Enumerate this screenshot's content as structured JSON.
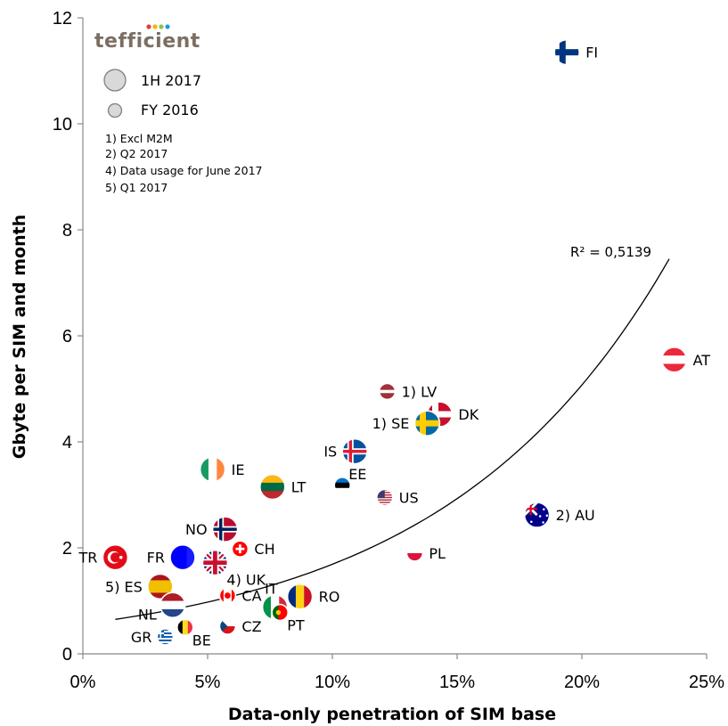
{
  "logo": {
    "text": "tefficient"
  },
  "legend": {
    "items": [
      {
        "label": "1H 2017",
        "size": "large"
      },
      {
        "label": "FY 2016",
        "size": "small"
      }
    ]
  },
  "notes": [
    "1) Excl M2M",
    "2) Q2 2017",
    "4) Data usage for June 2017",
    "5) Q1 2017"
  ],
  "chart_data": {
    "type": "scatter",
    "xlabel": "Data-only penetration of SIM base",
    "ylabel": "Gbyte per SIM and month",
    "xlim": [
      0,
      0.25
    ],
    "ylim": [
      0,
      12
    ],
    "x_ticks": [
      {
        "value": 0,
        "label": "0%"
      },
      {
        "value": 0.05,
        "label": "5%"
      },
      {
        "value": 0.1,
        "label": "10%"
      },
      {
        "value": 0.15,
        "label": "15%"
      },
      {
        "value": 0.2,
        "label": "20%"
      },
      {
        "value": 0.25,
        "label": "25%"
      }
    ],
    "y_ticks": [
      {
        "value": 0,
        "label": "0"
      },
      {
        "value": 2,
        "label": "2"
      },
      {
        "value": 4,
        "label": "4"
      },
      {
        "value": 6,
        "label": "6"
      },
      {
        "value": 8,
        "label": "8"
      },
      {
        "value": 10,
        "label": "10"
      },
      {
        "value": 12,
        "label": "12"
      }
    ],
    "trendline": {
      "type": "exponential",
      "r2_label": "R² = 0,5139",
      "x_start": 0.013,
      "x_end": 0.235,
      "y_start": 0.65,
      "y_end": 7.45
    },
    "points": [
      {
        "country": "FI",
        "label": "FI",
        "x": 0.194,
        "y": 11.35,
        "size": "large",
        "flag": "FI",
        "label_side": "right"
      },
      {
        "country": "AT",
        "label": "AT",
        "x": 0.237,
        "y": 5.55,
        "size": "large",
        "flag": "AT",
        "label_side": "right"
      },
      {
        "country": "LV",
        "label": "1) LV",
        "x": 0.122,
        "y": 4.95,
        "size": "small",
        "flag": "LV",
        "label_side": "right"
      },
      {
        "country": "DK",
        "label": "DK",
        "x": 0.143,
        "y": 4.52,
        "size": "large",
        "flag": "DK",
        "label_side": "right"
      },
      {
        "country": "SE",
        "label": "1) SE",
        "x": 0.138,
        "y": 4.35,
        "size": "large",
        "flag": "SE",
        "label_side": "left"
      },
      {
        "country": "IS",
        "label": "IS",
        "x": 0.109,
        "y": 3.82,
        "size": "large",
        "flag": "IS",
        "label_side": "left"
      },
      {
        "country": "EE",
        "label": "EE",
        "x": 0.104,
        "y": 3.18,
        "size": "small",
        "flag": "EE",
        "label_side": "upright"
      },
      {
        "country": "IE",
        "label": "IE",
        "x": 0.052,
        "y": 3.48,
        "size": "large",
        "flag": "IE",
        "label_side": "right"
      },
      {
        "country": "LT",
        "label": "LT",
        "x": 0.076,
        "y": 3.15,
        "size": "large",
        "flag": "LT",
        "label_side": "right"
      },
      {
        "country": "US",
        "label": "US",
        "x": 0.121,
        "y": 2.95,
        "size": "small",
        "flag": "US",
        "label_side": "right"
      },
      {
        "country": "AU",
        "label": "2) AU",
        "x": 0.182,
        "y": 2.62,
        "size": "large",
        "flag": "AU",
        "label_side": "right"
      },
      {
        "country": "NO",
        "label": "NO",
        "x": 0.057,
        "y": 2.35,
        "size": "large",
        "flag": "NO",
        "label_side": "left"
      },
      {
        "country": "CH",
        "label": "CH",
        "x": 0.063,
        "y": 1.98,
        "size": "small",
        "flag": "CH",
        "label_side": "right"
      },
      {
        "country": "PL",
        "label": "PL",
        "x": 0.133,
        "y": 1.9,
        "size": "small",
        "flag": "PL",
        "label_side": "right"
      },
      {
        "country": "TR",
        "label": "TR",
        "x": 0.013,
        "y": 1.82,
        "size": "large",
        "flag": "TR",
        "label_side": "left"
      },
      {
        "country": "FR",
        "label": "FR",
        "x": 0.04,
        "y": 1.82,
        "size": "large",
        "flag": "FR",
        "label_side": "left"
      },
      {
        "country": "UK",
        "label": "4) UK",
        "x": 0.053,
        "y": 1.72,
        "size": "large",
        "flag": "UK",
        "label_side": "downright"
      },
      {
        "country": "ES",
        "label": "5) ES",
        "x": 0.031,
        "y": 1.27,
        "size": "large",
        "flag": "ES",
        "label_side": "left"
      },
      {
        "country": "IT",
        "label": "IT",
        "x": 0.077,
        "y": 0.88,
        "size": "large",
        "flag": "IT",
        "label_side": "upleft"
      },
      {
        "country": "RO",
        "label": "RO",
        "x": 0.087,
        "y": 1.08,
        "size": "large",
        "flag": "RO",
        "label_side": "right"
      },
      {
        "country": "CA",
        "label": "CA",
        "x": 0.058,
        "y": 1.1,
        "size": "small",
        "flag": "CA",
        "label_side": "right"
      },
      {
        "country": "PT",
        "label": "PT",
        "x": 0.079,
        "y": 0.78,
        "size": "small",
        "flag": "PT",
        "label_side": "downright"
      },
      {
        "country": "NL",
        "label": "NL",
        "x": 0.036,
        "y": 0.92,
        "size": "large",
        "flag": "NL",
        "label_side": "downleft"
      },
      {
        "country": "CZ",
        "label": "CZ",
        "x": 0.058,
        "y": 0.52,
        "size": "small",
        "flag": "CZ",
        "label_side": "right"
      },
      {
        "country": "BE",
        "label": "BE",
        "x": 0.041,
        "y": 0.5,
        "size": "small",
        "flag": "BE",
        "label_side": "downright"
      },
      {
        "country": "GR",
        "label": "GR",
        "x": 0.033,
        "y": 0.32,
        "size": "small",
        "flag": "GR",
        "label_side": "left"
      }
    ]
  }
}
